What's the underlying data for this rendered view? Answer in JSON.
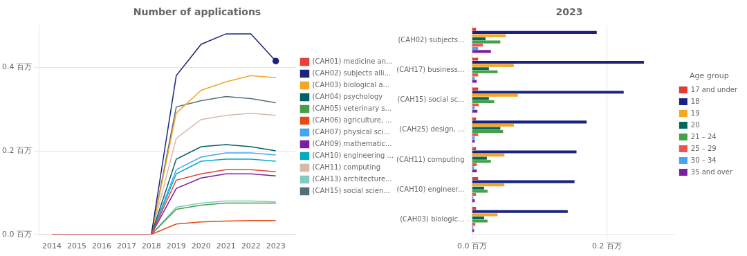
{
  "chart_data": [
    {
      "type": "line",
      "title": "Number of applications",
      "x": [
        2014,
        2015,
        2016,
        2017,
        2018,
        2019,
        2020,
        2021,
        2022,
        2023
      ],
      "series": [
        {
          "name": "(CAH01) medicine an...",
          "color": "#e8413a",
          "values": [
            0,
            0,
            0,
            0,
            0,
            0.13,
            0.145,
            0.155,
            0.155,
            0.15
          ]
        },
        {
          "name": "(CAH02) subjects alli...",
          "color": "#1a237e",
          "values": [
            0,
            0,
            0,
            0,
            0,
            0.38,
            0.455,
            0.48,
            0.48,
            0.415
          ],
          "marker": "o"
        },
        {
          "name": "(CAH03) biological a...",
          "color": "#f5a623",
          "values": [
            0,
            0,
            0,
            0,
            0,
            0.29,
            0.345,
            0.365,
            0.38,
            0.375
          ]
        },
        {
          "name": "(CAH04) psychology",
          "color": "#006064",
          "values": [
            0,
            0,
            0,
            0,
            0,
            0.18,
            0.21,
            0.215,
            0.21,
            0.2
          ]
        },
        {
          "name": "(CAH05) veterinary s...",
          "color": "#43a047",
          "values": [
            0,
            0,
            0,
            0,
            0,
            0.06,
            0.07,
            0.075,
            0.075,
            0.075
          ]
        },
        {
          "name": "(CAH06) agriculture, ...",
          "color": "#e64a19",
          "values": [
            0,
            0,
            0,
            0,
            0,
            0.025,
            0.03,
            0.032,
            0.033,
            0.033
          ]
        },
        {
          "name": "(CAH07) physical sci...",
          "color": "#42a5f5",
          "values": [
            0,
            0,
            0,
            0,
            0,
            0.155,
            0.185,
            0.195,
            0.195,
            0.19
          ]
        },
        {
          "name": "(CAH09) mathematic...",
          "color": "#7b1fa2",
          "values": [
            0,
            0,
            0,
            0,
            0,
            0.11,
            0.135,
            0.145,
            0.145,
            0.14
          ]
        },
        {
          "name": "(CAH10) engineering ...",
          "color": "#00acc1",
          "values": [
            0,
            0,
            0,
            0,
            0,
            0.145,
            0.175,
            0.18,
            0.18,
            0.175
          ]
        },
        {
          "name": "(CAH11) computing",
          "color": "#d7b9a8",
          "values": [
            0,
            0,
            0,
            0,
            0,
            0.23,
            0.275,
            0.285,
            0.29,
            0.285
          ]
        },
        {
          "name": "(CAH13) architecture...",
          "color": "#80cbc4",
          "values": [
            0,
            0,
            0,
            0,
            0,
            0.065,
            0.075,
            0.08,
            0.08,
            0.078
          ]
        },
        {
          "name": "(CAH15) social scien...",
          "color": "#546e7a",
          "values": [
            0,
            0,
            0,
            0,
            0,
            0.305,
            0.32,
            0.33,
            0.325,
            0.315
          ]
        }
      ],
      "xlim": [
        2013.5,
        2023.8
      ],
      "xticks": [
        2014,
        2015,
        2016,
        2017,
        2018,
        2019,
        2020,
        2021,
        2022,
        2023
      ],
      "ylim": [
        0,
        0.5
      ],
      "yticks": [
        {
          "value": 0.0,
          "label": "0.0 百万"
        },
        {
          "value": 0.2,
          "label": "0.2 百万"
        },
        {
          "value": 0.4,
          "label": "0.4 百万"
        }
      ],
      "grid": "y",
      "legend": "right"
    },
    {
      "type": "bar",
      "title": "2023",
      "orientation": "horizontal",
      "categories": [
        "(CAH02) subjects...",
        "(CAH17) business...",
        "(CAH15) social sc...",
        "(CAH25) design, ...",
        "(CAH11) computing",
        "(CAH10) engineer...",
        "(CAH03) biologic..."
      ],
      "legend_title": "Age group",
      "series": [
        {
          "name": "17 and under",
          "color": "#e53935",
          "values": [
            0.006,
            0.009,
            0.009,
            0.006,
            0.006,
            0.009,
            0.006
          ]
        },
        {
          "name": "18",
          "color": "#1a237e",
          "values": [
            0.185,
            0.255,
            0.225,
            0.17,
            0.155,
            0.152,
            0.142
          ]
        },
        {
          "name": "19",
          "color": "#f5a623",
          "values": [
            0.05,
            0.062,
            0.068,
            0.062,
            0.048,
            0.048,
            0.038
          ]
        },
        {
          "name": "20",
          "color": "#00695c",
          "values": [
            0.02,
            0.025,
            0.025,
            0.042,
            0.022,
            0.018,
            0.018
          ]
        },
        {
          "name": "21 – 24",
          "color": "#43a047",
          "values": [
            0.042,
            0.038,
            0.033,
            0.046,
            0.028,
            0.023,
            0.023
          ]
        },
        {
          "name": "25 – 29",
          "color": "#ef5350",
          "values": [
            0.016,
            0.009,
            0.01,
            0.009,
            0.007,
            0.006,
            0.005
          ]
        },
        {
          "name": "30 – 34",
          "color": "#42a5f5",
          "values": [
            0.009,
            0.004,
            0.004,
            0.004,
            0.003,
            0.002,
            0.002
          ]
        },
        {
          "name": "35 and over",
          "color": "#7b1fa2",
          "values": [
            0.028,
            0.007,
            0.008,
            0.004,
            0.007,
            0.004,
            0.003
          ]
        }
      ],
      "xlim": [
        0,
        0.3
      ],
      "xticks": [
        {
          "value": 0.0,
          "label": "0.0 百万"
        },
        {
          "value": 0.2,
          "label": "0.2 百万"
        }
      ],
      "grid": "x",
      "legend": "right"
    }
  ]
}
